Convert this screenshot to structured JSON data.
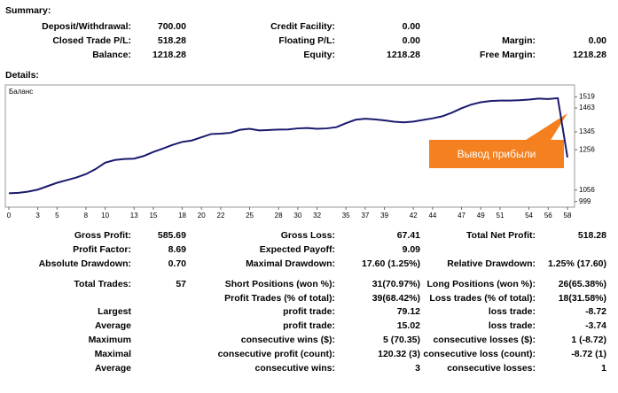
{
  "summary": {
    "title": "Summary:",
    "rows": [
      [
        "Deposit/Withdrawal:",
        "700.00",
        "Credit Facility:",
        "0.00",
        null,
        null
      ],
      [
        "Closed Trade P/L:",
        "518.28",
        "Floating P/L:",
        "0.00",
        "Margin:",
        "0.00"
      ],
      [
        "Balance:",
        "1218.28",
        "Equity:",
        "1218.28",
        "Free Margin:",
        "1218.28"
      ]
    ]
  },
  "details": {
    "title": "Details:",
    "rows": [
      [
        "Gross Profit:",
        "585.69",
        "Gross Loss:",
        "67.41",
        "Total Net Profit:",
        "518.28"
      ],
      [
        "Profit Factor:",
        "8.69",
        "Expected Payoff:",
        "9.09",
        null,
        null
      ],
      [
        "Absolute Drawdown:",
        "0.70",
        "Maximal Drawdown:",
        "17.60 (1.25%)",
        "Relative Drawdown:",
        "1.25% (17.60)"
      ],
      [
        "Total Trades:",
        "57",
        "Short Positions (won %):",
        "31(70.97%)",
        "Long Positions (won %):",
        "26(65.38%)"
      ],
      [
        null,
        null,
        "Profit Trades (% of total):",
        "39(68.42%)",
        "Loss trades (% of total):",
        "18(31.58%)"
      ],
      [
        "Largest",
        null,
        "profit trade:",
        "79.12",
        "loss trade:",
        "-8.72"
      ],
      [
        "Average",
        null,
        "profit trade:",
        "15.02",
        "loss trade:",
        "-3.74"
      ],
      [
        "Maximum",
        null,
        "consecutive wins ($):",
        "5 (70.35)",
        "consecutive losses ($):",
        "1 (-8.72)"
      ],
      [
        "Maximal",
        null,
        "consecutive profit (count):",
        "120.32 (3)",
        "consecutive loss (count):",
        "-8.72 (1)"
      ],
      [
        "Average",
        null,
        "consecutive wins:",
        "3",
        "consecutive losses:",
        "1"
      ]
    ]
  },
  "chart_data": {
    "type": "line",
    "series_label": "Баланс",
    "annotation": "Вывод прибыли",
    "color": "#1a1a6e",
    "x": [
      0,
      1,
      2,
      3,
      4,
      5,
      6,
      7,
      8,
      9,
      10,
      11,
      12,
      13,
      14,
      15,
      16,
      17,
      18,
      19,
      20,
      21,
      22,
      23,
      24,
      25,
      26,
      27,
      28,
      29,
      30,
      31,
      32,
      33,
      34,
      35,
      36,
      37,
      38,
      39,
      40,
      41,
      42,
      43,
      44,
      45,
      46,
      47,
      48,
      49,
      50,
      51,
      52,
      53,
      54,
      55,
      56,
      57,
      58
    ],
    "values": [
      1040,
      1042,
      1048,
      1058,
      1075,
      1092,
      1105,
      1118,
      1135,
      1160,
      1192,
      1205,
      1210,
      1212,
      1225,
      1245,
      1262,
      1280,
      1295,
      1302,
      1318,
      1334,
      1336,
      1340,
      1355,
      1360,
      1352,
      1354,
      1356,
      1357,
      1362,
      1364,
      1360,
      1362,
      1368,
      1388,
      1405,
      1410,
      1407,
      1402,
      1395,
      1392,
      1396,
      1404,
      1412,
      1422,
      1440,
      1462,
      1480,
      1492,
      1498,
      1500,
      1500,
      1502,
      1505,
      1510,
      1508,
      1512,
      1218
    ],
    "xlim": [
      0,
      58
    ],
    "xticks": [
      0,
      3,
      5,
      8,
      10,
      13,
      15,
      18,
      20,
      22,
      25,
      28,
      30,
      32,
      35,
      37,
      39,
      42,
      44,
      47,
      49,
      51,
      54,
      56,
      58
    ],
    "ylim": [
      980,
      1560
    ],
    "yticks": [
      999,
      1056,
      1256,
      1345,
      1463,
      1519
    ]
  }
}
